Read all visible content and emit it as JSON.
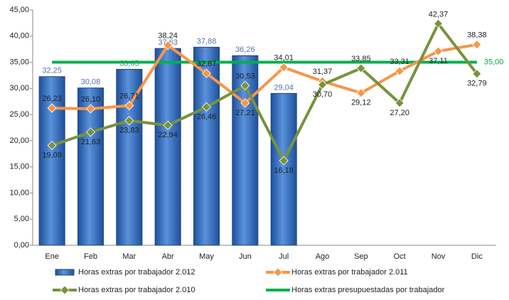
{
  "chart_data": {
    "type": "bar",
    "categories": [
      "Ene",
      "Feb",
      "Mar",
      "Abr",
      "May",
      "Jun",
      "Jul",
      "Ago",
      "Sep",
      "Oct",
      "Nov",
      "Dic"
    ],
    "ylim": [
      0,
      45
    ],
    "yticks": [
      {
        "value": 0,
        "label": "0,00"
      },
      {
        "value": 5,
        "label": "5,00"
      },
      {
        "value": 10,
        "label": "10,00"
      },
      {
        "value": 15,
        "label": "15,00"
      },
      {
        "value": 20,
        "label": "20,00"
      },
      {
        "value": 25,
        "label": "25,00"
      },
      {
        "value": 30,
        "label": "30,00"
      },
      {
        "value": 35,
        "label": "35,00"
      },
      {
        "value": 40,
        "label": "40,00"
      },
      {
        "value": 45,
        "label": "45,00"
      }
    ],
    "grid": false,
    "legend": "bottom",
    "series": [
      {
        "name": "Horas extras por trabajador 2.012",
        "type": "bar",
        "color": "#3a70c0",
        "values": [
          32.25,
          30.08,
          33.65,
          37.63,
          37.88,
          36.26,
          29.04,
          null,
          null,
          null,
          null,
          null
        ],
        "value_labels": [
          "32,25",
          "30,08",
          "33,65",
          "37,63",
          "37,88",
          "36,26",
          "29,04",
          null,
          null,
          null,
          null,
          null
        ]
      },
      {
        "name": "Horas extras por trabajador 2.011",
        "type": "line",
        "color": "#f79646",
        "values": [
          26.23,
          26.1,
          26.71,
          38.24,
          32.87,
          27.21,
          34.01,
          31.37,
          29.12,
          33.31,
          37.11,
          38.38
        ],
        "value_labels": [
          "26,23",
          "26,10",
          "26,71",
          "38,24",
          "32,87",
          "27,21",
          "34,01",
          "31,37",
          "29,12",
          "33,31",
          "37,11",
          "38,38"
        ]
      },
      {
        "name": "Horas extras por trabajador 2.010",
        "type": "line",
        "color": "#77933c",
        "values": [
          19.09,
          21.63,
          23.83,
          22.94,
          26.46,
          30.53,
          16.18,
          30.7,
          33.85,
          27.2,
          42.37,
          32.79
        ],
        "value_labels": [
          "19,09",
          "21,63",
          "23,83",
          "22,94",
          "26,46",
          "30,53",
          "16,18",
          "30,70",
          "33,85",
          "27,20",
          "42,37",
          "32,79"
        ]
      },
      {
        "name": "Horas extras presupuestadas por trabajador",
        "type": "flat",
        "color": "#00b050",
        "values": [
          35,
          35,
          35,
          35,
          35,
          35,
          35,
          35,
          35,
          35,
          35,
          35
        ],
        "value_labels": [
          null,
          null,
          null,
          null,
          null,
          null,
          null,
          null,
          null,
          null,
          null,
          "35,00"
        ]
      }
    ]
  }
}
